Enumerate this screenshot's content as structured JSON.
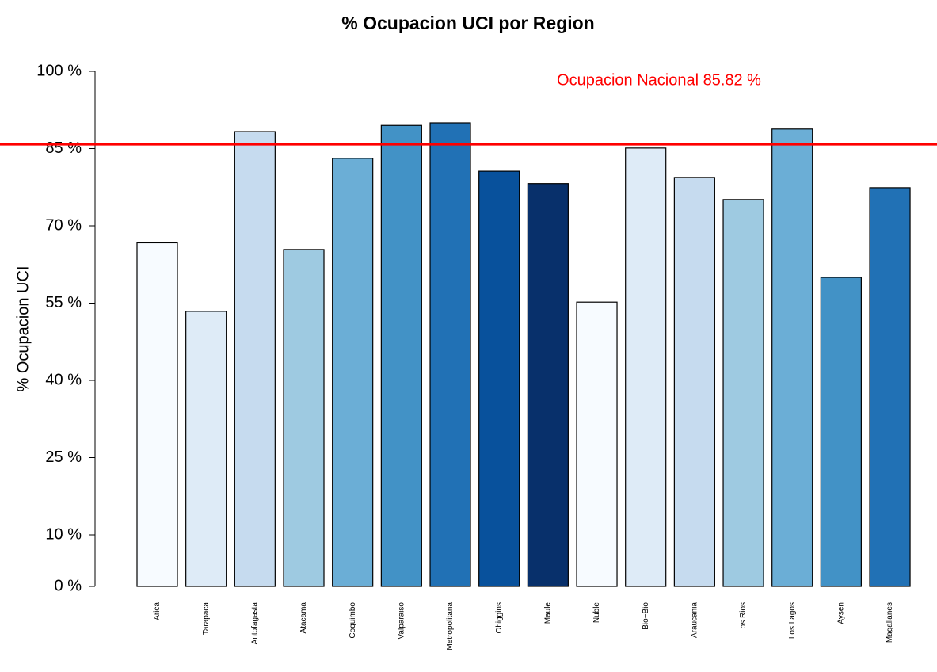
{
  "chart_data": {
    "type": "bar",
    "title": "% Ocupacion UCI por Region",
    "y_label": "% Ocupacion UCI",
    "categories": [
      "Arica",
      "Tarapaca",
      "Antofagasta",
      "Atacama",
      "Coquimbo",
      "Valparaiso",
      "Metropolitana",
      "Ohiggins",
      "Maule",
      "Nuble",
      "Bio−Bio",
      "Araucania",
      "Los Rios",
      "Los Lagos",
      "Aysen",
      "Magallanes"
    ],
    "values": [
      66.7,
      53.4,
      88.3,
      65.4,
      83.1,
      89.5,
      90.0,
      80.6,
      78.2,
      55.2,
      85.1,
      79.4,
      75.1,
      88.8,
      60.0,
      77.4
    ],
    "colors": [
      "#F7FBFF",
      "#DEEBF7",
      "#C6DBEF",
      "#9ECAE1",
      "#6BAED6",
      "#4292C6",
      "#2171B5",
      "#08519C",
      "#08306B",
      "#F7FBFF",
      "#DEEBF7",
      "#C6DBEF",
      "#9ECAE1",
      "#6BAED6",
      "#4292C6",
      "#2171B5"
    ],
    "ylim": [
      0,
      100
    ],
    "yticks": [
      {
        "value": 0,
        "label": "0 %"
      },
      {
        "value": 10,
        "label": "10 %"
      },
      {
        "value": 25,
        "label": "25 %"
      },
      {
        "value": 40,
        "label": "40 %"
      },
      {
        "value": 55,
        "label": "55 %"
      },
      {
        "value": 70,
        "label": "70 %"
      },
      {
        "value": 85,
        "label": "85 %"
      },
      {
        "value": 100,
        "label": "100 %"
      }
    ],
    "reference_line": {
      "value": 85.82,
      "color": "#FF0000",
      "label": "Ocupacion Nacional 85.82 %"
    }
  }
}
